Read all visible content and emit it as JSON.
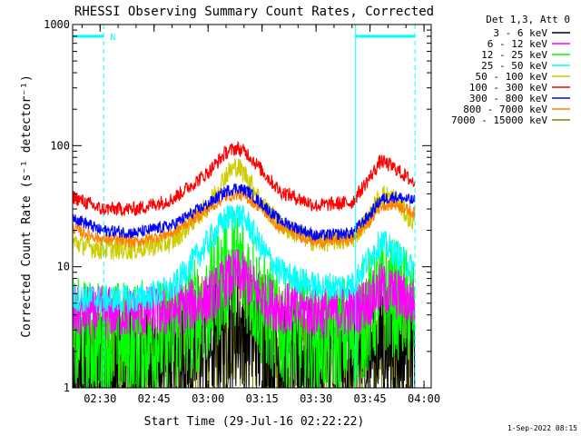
{
  "chart_data": {
    "type": "line",
    "title": "RHESSI Observing Summary Count Rates, Corrected",
    "xlabel": "Start Time (29-Jul-16 02:22:22)",
    "ylabel": "Corrected Count Rate (s⁻¹ detector⁻¹)",
    "footer": "1-Sep-2022 08:15",
    "yscale": "log",
    "ylim": [
      1,
      1000
    ],
    "xlim": [
      "02:22:22",
      "04:02:00"
    ],
    "x_ticks": [
      "02:30",
      "02:45",
      "03:00",
      "03:15",
      "03:30",
      "03:45",
      "04:00"
    ],
    "y_ticks": [
      "1",
      "10",
      "100",
      "1000"
    ],
    "legend": {
      "header": "Det 1,3, Att 0",
      "placement": "outside-right-top"
    },
    "annotations": [
      {
        "label": "N",
        "from": "02:22:22",
        "to": "02:31:00",
        "level": 800,
        "color": "#00ffff"
      },
      {
        "label": "",
        "from": "03:41:00",
        "to": "03:57:30",
        "level": 800,
        "color": "#00ffff"
      }
    ],
    "series": [
      {
        "name": "3 - 6 keV",
        "color": "#000000",
        "x": [
          "02:22:22",
          "02:30",
          "02:40",
          "02:50",
          "03:00",
          "03:05",
          "03:08",
          "03:11",
          "03:15",
          "03:20",
          "03:30",
          "03:40",
          "03:45",
          "03:48",
          "03:52",
          "03:57"
        ],
        "values": [
          1.3,
          1.3,
          1.4,
          1.6,
          2.2,
          3.0,
          3.3,
          3.0,
          2.3,
          1.8,
          1.5,
          1.6,
          2.1,
          2.6,
          2.3,
          1.9
        ]
      },
      {
        "name": "6 - 12 keV",
        "color": "#ff00ff",
        "x": [
          "02:22:22",
          "02:30",
          "02:40",
          "02:50",
          "03:00",
          "03:05",
          "03:08",
          "03:11",
          "03:15",
          "03:20",
          "03:30",
          "03:40",
          "03:45",
          "03:48",
          "03:52",
          "03:57"
        ],
        "values": [
          4.2,
          4.2,
          4.2,
          4.3,
          5.3,
          7.6,
          8.8,
          7.6,
          5.5,
          4.6,
          4.2,
          4.3,
          5.3,
          6.6,
          6.0,
          5.0
        ]
      },
      {
        "name": "12 - 25 keV",
        "color": "#00ff00",
        "x": [
          "02:22:22",
          "02:30",
          "02:40",
          "02:50",
          "03:00",
          "03:05",
          "03:08",
          "03:11",
          "03:15",
          "03:20",
          "03:30",
          "03:40",
          "03:45",
          "03:48",
          "03:52",
          "03:57"
        ],
        "values": [
          2.6,
          2.5,
          2.5,
          2.7,
          4.8,
          9.0,
          10.5,
          8.5,
          4.5,
          3.2,
          2.6,
          2.8,
          4.2,
          6.0,
          5.5,
          4.2
        ]
      },
      {
        "name": "25 - 50 keV",
        "color": "#00ffff",
        "x": [
          "02:22:22",
          "02:30",
          "02:40",
          "02:50",
          "03:00",
          "03:05",
          "03:08",
          "03:11",
          "03:15",
          "03:20",
          "03:30",
          "03:40",
          "03:45",
          "03:48",
          "03:52",
          "03:57"
        ],
        "values": [
          5.6,
          5.4,
          5.4,
          6.5,
          16,
          25,
          27,
          23,
          14,
          9,
          6.8,
          7.0,
          12,
          16,
          13,
          9.5
        ]
      },
      {
        "name": "50 - 100 keV",
        "color": "#cccc00",
        "x": [
          "02:22:22",
          "02:30",
          "02:40",
          "02:50",
          "03:00",
          "03:05",
          "03:08",
          "03:11",
          "03:15",
          "03:20",
          "03:30",
          "03:40",
          "03:45",
          "03:48",
          "03:52",
          "03:57"
        ],
        "values": [
          16,
          14,
          14,
          16,
          32,
          58,
          68,
          55,
          33,
          22,
          16,
          17,
          26,
          40,
          36,
          23
        ]
      },
      {
        "name": "100 - 300 keV",
        "color": "#ff0000",
        "x": [
          "02:22:22",
          "02:30",
          "02:40",
          "02:50",
          "03:00",
          "03:05",
          "03:08",
          "03:11",
          "03:15",
          "03:20",
          "03:30",
          "03:40",
          "03:45",
          "03:48",
          "03:52",
          "03:57"
        ],
        "values": [
          38,
          30,
          30,
          36,
          60,
          88,
          96,
          86,
          62,
          42,
          32,
          34,
          55,
          75,
          65,
          50
        ]
      },
      {
        "name": "300 - 800 keV",
        "color": "#0000ff",
        "x": [
          "02:22:22",
          "02:30",
          "02:40",
          "02:50",
          "03:00",
          "03:05",
          "03:08",
          "03:11",
          "03:15",
          "03:20",
          "03:30",
          "03:40",
          "03:45",
          "03:48",
          "03:52",
          "03:57"
        ],
        "values": [
          26,
          20,
          19,
          22,
          33,
          42,
          45,
          42,
          33,
          24,
          18,
          19,
          27,
          36,
          38,
          35
        ]
      },
      {
        "name": "800 - 7000 keV",
        "color": "#ff8000",
        "x": [
          "02:22:22",
          "02:30",
          "02:40",
          "02:50",
          "03:00",
          "03:05",
          "03:08",
          "03:11",
          "03:15",
          "03:20",
          "03:30",
          "03:40",
          "03:45",
          "03:48",
          "03:52",
          "03:57"
        ],
        "values": [
          21,
          17,
          16,
          19,
          30,
          38,
          40,
          37,
          30,
          21,
          16,
          17,
          24,
          32,
          33,
          28
        ]
      },
      {
        "name": "7000 - 15000 keV",
        "color": "#808000",
        "x": [
          "02:22:22",
          "02:30",
          "02:40",
          "02:50",
          "03:00",
          "03:05",
          "03:08",
          "03:11",
          "03:15",
          "03:20",
          "03:30",
          "03:40",
          "03:45",
          "03:48",
          "03:52",
          "03:57"
        ],
        "values": [
          1.4,
          1.4,
          1.5,
          1.7,
          2.4,
          3.6,
          4.2,
          3.4,
          2.4,
          1.9,
          1.6,
          1.6,
          2.6,
          3.6,
          3.4,
          2.6
        ]
      }
    ]
  }
}
